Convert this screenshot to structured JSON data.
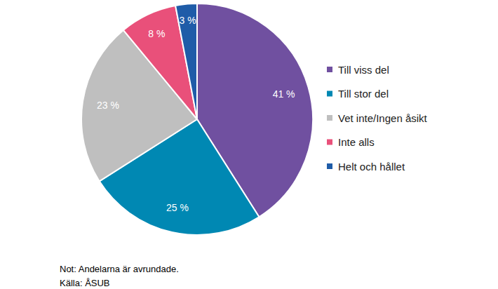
{
  "chart_data": {
    "type": "pie",
    "categories": [
      "Till viss del",
      "Till stor del",
      "Vet inte/Ingen åsikt",
      "Inte alls",
      "Helt och hållet"
    ],
    "values": [
      41,
      25,
      23,
      8,
      3
    ],
    "value_labels": [
      "41 %",
      "25 %",
      "23 %",
      "8 %",
      "3 %"
    ],
    "colors": [
      "#7050a0",
      "#0088b3",
      "#bfbfbf",
      "#e9507a",
      "#1f5ca8"
    ],
    "data_labels": true,
    "legend": "right",
    "annotations": [
      "Not: Andelarna är avrundade.",
      "Källa: ÅSUB"
    ]
  }
}
